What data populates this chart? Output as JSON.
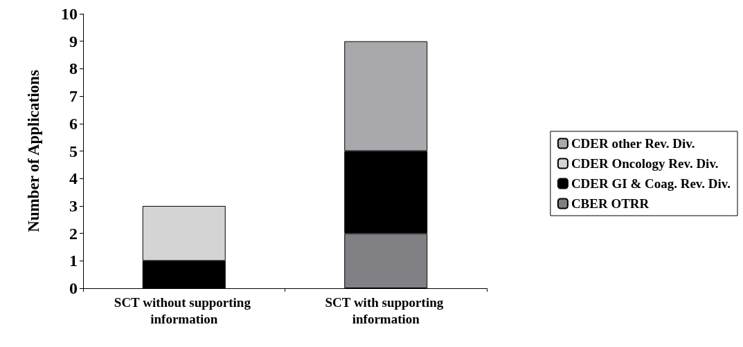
{
  "chart_data": {
    "type": "bar",
    "stacked": true,
    "ylabel": "Number of Applications",
    "categories": [
      "SCT without supporting information",
      "SCT with supporting information"
    ],
    "series": [
      {
        "name": "CBER OTRR",
        "color": "#808085",
        "values": [
          null,
          2
        ]
      },
      {
        "name": "CDER GI & Coag. Rev. Div.",
        "color": "#000000",
        "values": [
          1,
          3
        ]
      },
      {
        "name": "CDER Oncology Rev. Div.",
        "color": "#d4d4d4",
        "values": [
          2,
          null
        ]
      },
      {
        "name": "CDER other Rev. Div.",
        "color": "#a9a9ad",
        "values": [
          null,
          4
        ]
      }
    ],
    "ylim": [
      0,
      10
    ],
    "yticks": [
      0,
      1,
      2,
      3,
      4,
      5,
      6,
      7,
      8,
      9,
      10
    ],
    "grid": false,
    "legend": "right"
  }
}
